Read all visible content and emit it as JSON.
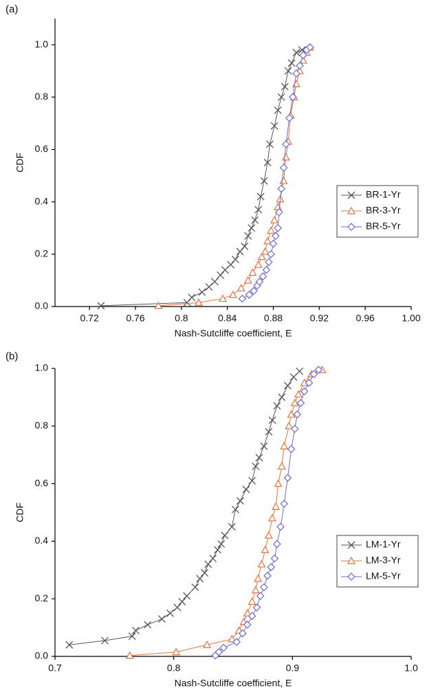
{
  "chart_data": [
    {
      "type": "line",
      "title": "(a)",
      "x_label": "Nash-Sutcliffe coefficient, E",
      "y_label": "CDF",
      "xlim": [
        0.69,
        1.0
      ],
      "xticks": [
        0.72,
        0.76,
        0.8,
        0.84,
        0.88,
        0.92,
        0.96,
        {
          "value": 1.0,
          "label": "1.00"
        }
      ],
      "ylim": [
        0,
        1.1
      ],
      "yticks": [
        {
          "value": 0,
          "label": "0.0"
        },
        0.2,
        0.4,
        0.6,
        0.8,
        {
          "value": 1.0,
          "label": "1.0"
        }
      ],
      "legend": "right",
      "series": [
        {
          "name": "BR-1-Yr",
          "color": "#555555",
          "marker": "x",
          "x": [
            0.73,
            0.805,
            0.809,
            0.818,
            0.824,
            0.829,
            0.834,
            0.838,
            0.843,
            0.847,
            0.851,
            0.855,
            0.858,
            0.861,
            0.864,
            0.867,
            0.869,
            0.872,
            0.875,
            0.877,
            0.881,
            0.884,
            0.887,
            0.89,
            0.893,
            0.896,
            0.9,
            0.905
          ],
          "values": [
            0.003,
            0.015,
            0.035,
            0.055,
            0.075,
            0.095,
            0.12,
            0.14,
            0.16,
            0.18,
            0.21,
            0.23,
            0.27,
            0.3,
            0.33,
            0.37,
            0.42,
            0.48,
            0.55,
            0.62,
            0.69,
            0.75,
            0.8,
            0.84,
            0.9,
            0.93,
            0.97,
            0.98
          ]
        },
        {
          "name": "BR-3-Yr",
          "color": "#e8703a",
          "marker": "triangle",
          "x": [
            0.78,
            0.815,
            0.836,
            0.845,
            0.852,
            0.858,
            0.862,
            0.867,
            0.87,
            0.873,
            0.875,
            0.878,
            0.881,
            0.884,
            0.886,
            0.889,
            0.891,
            0.893,
            0.895,
            0.898,
            0.9,
            0.903,
            0.906,
            0.909,
            0.912
          ],
          "values": [
            0.003,
            0.015,
            0.03,
            0.045,
            0.07,
            0.1,
            0.13,
            0.16,
            0.19,
            0.21,
            0.25,
            0.29,
            0.33,
            0.38,
            0.41,
            0.48,
            0.57,
            0.63,
            0.73,
            0.8,
            0.85,
            0.9,
            0.94,
            0.97,
            0.99
          ]
        },
        {
          "name": "BR-5-Yr",
          "color": "#6a6ad0",
          "marker": "diamond",
          "x": [
            0.853,
            0.859,
            0.863,
            0.866,
            0.868,
            0.871,
            0.874,
            0.876,
            0.878,
            0.88,
            0.882,
            0.884,
            0.885,
            0.887,
            0.889,
            0.891,
            0.894,
            0.897,
            0.9,
            0.903,
            0.906,
            0.909,
            0.912
          ],
          "values": [
            0.03,
            0.045,
            0.06,
            0.08,
            0.095,
            0.115,
            0.14,
            0.17,
            0.2,
            0.24,
            0.27,
            0.3,
            0.36,
            0.45,
            0.53,
            0.62,
            0.72,
            0.8,
            0.89,
            0.92,
            0.96,
            0.98,
            0.99
          ]
        }
      ]
    },
    {
      "type": "line",
      "title": "(b)",
      "x_label": "Nash-Sutcliffe coefficient, E",
      "y_label": "CDF",
      "xlim": [
        0.7,
        1.0
      ],
      "xticks": [
        0.7,
        0.8,
        0.9,
        {
          "value": 1.0,
          "label": "1.0"
        }
      ],
      "ylim": [
        0,
        1.0
      ],
      "yticks": [
        {
          "value": 0,
          "label": "0.0"
        },
        0.2,
        0.4,
        0.6,
        0.8,
        {
          "value": 1.0,
          "label": "1.0"
        }
      ],
      "legend": "right",
      "series": [
        {
          "name": "LM-1-Yr",
          "color": "#555555",
          "marker": "x",
          "x": [
            0.712,
            0.742,
            0.765,
            0.768,
            0.778,
            0.79,
            0.797,
            0.803,
            0.807,
            0.811,
            0.818,
            0.822,
            0.826,
            0.829,
            0.833,
            0.837,
            0.84,
            0.843,
            0.849,
            0.852,
            0.856,
            0.861,
            0.866,
            0.869,
            0.872,
            0.876,
            0.88,
            0.883,
            0.887,
            0.891,
            0.896,
            0.901,
            0.906
          ],
          "values": [
            0.04,
            0.055,
            0.07,
            0.09,
            0.11,
            0.13,
            0.15,
            0.17,
            0.19,
            0.21,
            0.24,
            0.27,
            0.29,
            0.32,
            0.34,
            0.37,
            0.39,
            0.42,
            0.45,
            0.51,
            0.54,
            0.58,
            0.61,
            0.66,
            0.69,
            0.73,
            0.78,
            0.82,
            0.87,
            0.9,
            0.94,
            0.97,
            0.99
          ]
        },
        {
          "name": "LM-3-Yr",
          "color": "#e8703a",
          "marker": "triangle",
          "x": [
            0.763,
            0.802,
            0.828,
            0.849,
            0.855,
            0.859,
            0.862,
            0.866,
            0.869,
            0.871,
            0.874,
            0.877,
            0.88,
            0.883,
            0.886,
            0.888,
            0.891,
            0.893,
            0.897,
            0.899,
            0.902,
            0.905,
            0.91,
            0.916,
            0.925
          ],
          "values": [
            0.003,
            0.015,
            0.04,
            0.06,
            0.09,
            0.12,
            0.15,
            0.19,
            0.23,
            0.27,
            0.32,
            0.37,
            0.42,
            0.48,
            0.52,
            0.6,
            0.66,
            0.73,
            0.8,
            0.84,
            0.88,
            0.91,
            0.95,
            0.98,
            0.995
          ]
        },
        {
          "name": "LM-5-Yr",
          "color": "#6a6ad0",
          "marker": "diamond",
          "x": [
            0.835,
            0.838,
            0.842,
            0.853,
            0.858,
            0.862,
            0.866,
            0.87,
            0.873,
            0.876,
            0.879,
            0.882,
            0.885,
            0.887,
            0.89,
            0.893,
            0.896,
            0.899,
            0.902,
            0.904,
            0.907,
            0.91,
            0.914,
            0.918,
            0.922
          ],
          "values": [
            0.003,
            0.015,
            0.03,
            0.05,
            0.08,
            0.11,
            0.14,
            0.17,
            0.21,
            0.24,
            0.28,
            0.31,
            0.34,
            0.39,
            0.45,
            0.53,
            0.62,
            0.72,
            0.79,
            0.84,
            0.88,
            0.92,
            0.95,
            0.98,
            0.995
          ]
        }
      ]
    }
  ]
}
